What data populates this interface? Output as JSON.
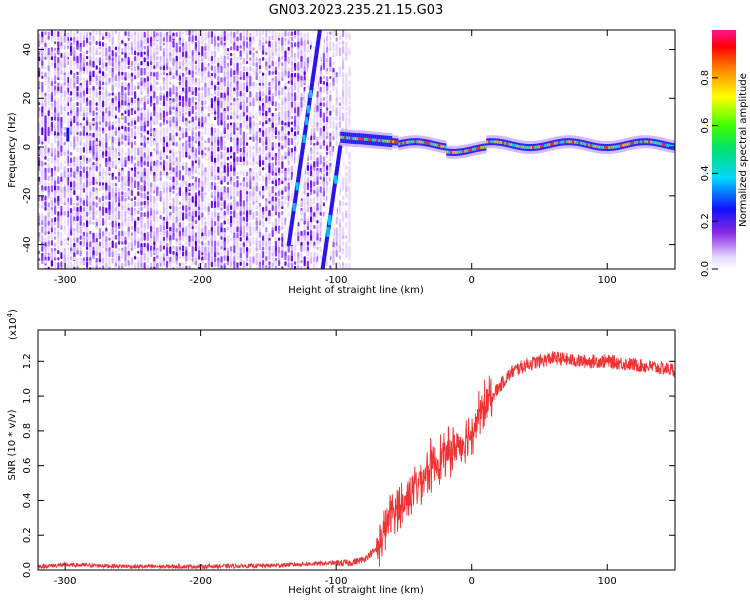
{
  "figure": {
    "title": "GN03.2023.235.21.15.G03"
  },
  "chart_data": [
    {
      "type": "heatmap",
      "xlabel": "Height of straight line (km)",
      "ylabel": "Frequency (Hz)",
      "xlim": [
        -320,
        150
      ],
      "ylim": [
        -50,
        48
      ],
      "x_ticks": [
        -300,
        -200,
        -100,
        0,
        100
      ],
      "y_ticks": [
        -40,
        -20,
        0,
        20,
        40
      ],
      "colorbar": {
        "label": "Normalized spectral amplitude",
        "range": [
          0,
          1
        ],
        "ticks": [
          "0.0",
          "0.2",
          "0.4",
          "0.6",
          "0.8"
        ],
        "tick_values": [
          0,
          0.2,
          0.4,
          0.6,
          0.8
        ]
      },
      "features": [
        {
          "kind": "noise_field",
          "x_range": [
            -320,
            -90
          ],
          "y_range": [
            -50,
            48
          ]
        },
        {
          "kind": "diagonal_streak",
          "x_start": -135,
          "y_start": -40,
          "x_end": -112,
          "y_end": 48
        },
        {
          "kind": "diagonal_streak",
          "x_start": -110,
          "y_start": -50,
          "x_end": -97,
          "y_end": 0
        },
        {
          "kind": "narrow_line",
          "x_range": [
            -97,
            150
          ],
          "center_freq": 0
        }
      ]
    },
    {
      "type": "line",
      "xlabel": "Height of straight line (km)",
      "ylabel": "SNR (10 * v/v)",
      "y_multiplier_label": "(x10",
      "y_multiplier_exp": "4",
      "xlim": [
        -320,
        150
      ],
      "ylim": [
        0,
        1.38
      ],
      "x_ticks": [
        -300,
        -200,
        -100,
        0,
        100
      ],
      "y_ticks": [
        "0.0",
        "0.2",
        "0.4",
        "0.6",
        "0.8",
        "1.0",
        "1.2"
      ],
      "y_tick_values": [
        0,
        0.2,
        0.4,
        0.6,
        0.8,
        1.0,
        1.2
      ],
      "series": [
        {
          "color": "#ee3333",
          "x": [
            -320,
            -300,
            -250,
            -200,
            -150,
            -120,
            -100,
            -90,
            -80,
            -70,
            -65,
            -60,
            -55,
            -50,
            -45,
            -40,
            -35,
            -30,
            -25,
            -20,
            -15,
            -10,
            -5,
            0,
            5,
            10,
            15,
            20,
            25,
            30,
            40,
            50,
            60,
            80,
            100,
            120,
            150
          ],
          "y": [
            0.02,
            0.03,
            0.02,
            0.02,
            0.025,
            0.035,
            0.04,
            0.04,
            0.06,
            0.12,
            0.2,
            0.32,
            0.35,
            0.38,
            0.45,
            0.5,
            0.55,
            0.6,
            0.63,
            0.66,
            0.68,
            0.72,
            0.75,
            0.8,
            0.88,
            0.95,
            1.0,
            1.05,
            1.1,
            1.14,
            1.18,
            1.2,
            1.22,
            1.2,
            1.2,
            1.18,
            1.15
          ]
        }
      ]
    }
  ]
}
